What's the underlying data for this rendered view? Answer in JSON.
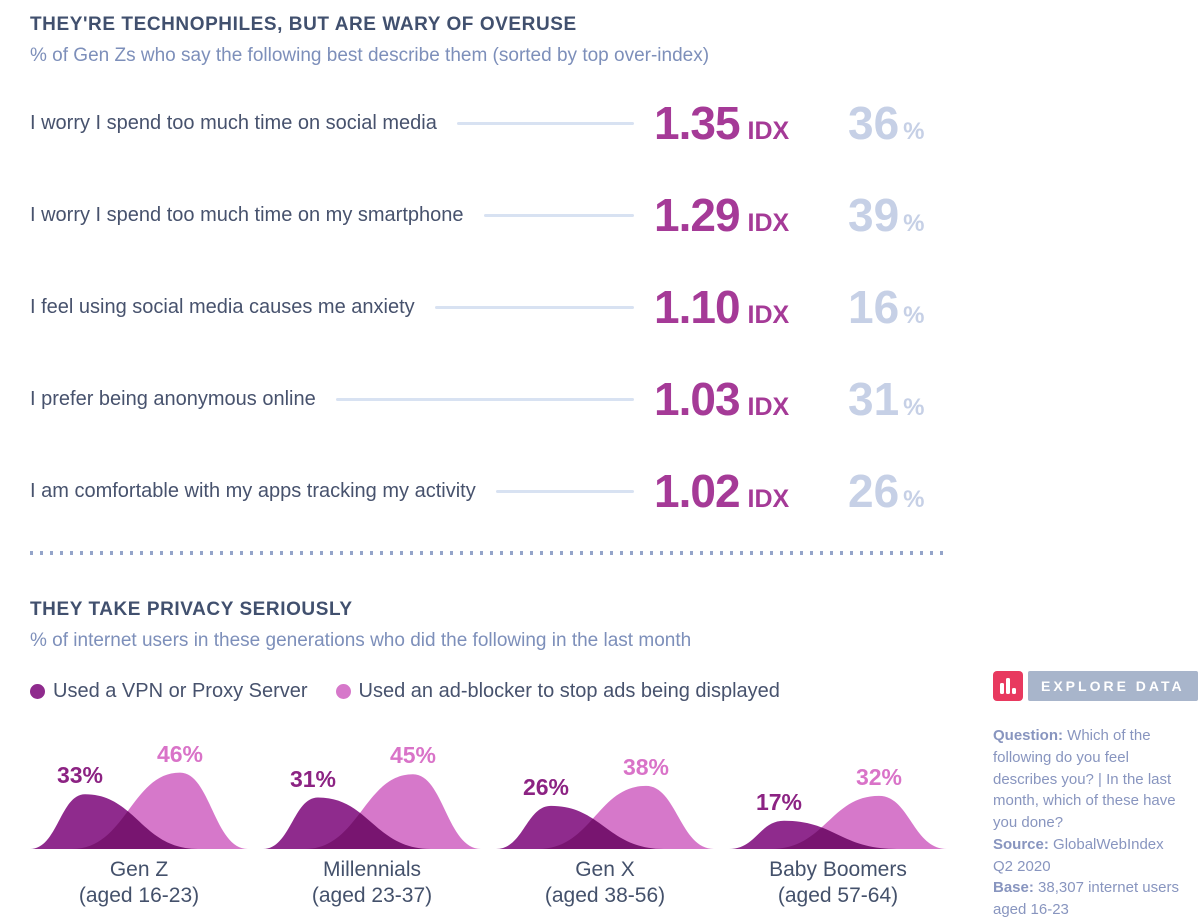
{
  "colors": {
    "heading_navy": "#41506e",
    "body_navy": "#47526d",
    "subtitle_blue": "#7d8fba",
    "index_magenta": "#a53a97",
    "percent_periwinkle": "#c6d0e6",
    "connector_line": "#d8e2f2",
    "divider_dot": "#94a4c9",
    "vpn_purple": "#8f2b8d",
    "adblocker_pink": "#d678ca",
    "vpn_label": "#8c2383",
    "adblocker_label": "#d973c8",
    "explore_icon_red": "#e8395f",
    "explore_button_gray": "#a8b5cb",
    "sidebar_text": "#8895bf"
  },
  "section1": {
    "title": "THEY'RE TECHNOPHILES, BUT ARE WARY OF OVERUSE",
    "subtitle": "% of Gen Zs who say the following best describe them (sorted by top over-index)",
    "idx_suffix": "IDX",
    "pct_suffix": "%",
    "rows": [
      {
        "label": "I worry I spend too much time on social media",
        "idx": "1.35",
        "pct": "36"
      },
      {
        "label": "I worry I spend too much time on my smartphone",
        "idx": "1.29",
        "pct": "39"
      },
      {
        "label": "I feel using social media causes me anxiety",
        "idx": "1.10",
        "pct": "16"
      },
      {
        "label": "I prefer being anonymous online",
        "idx": "1.03",
        "pct": "31"
      },
      {
        "label": "I am comfortable with my apps tracking my activity",
        "idx": "1.02",
        "pct": "26"
      }
    ]
  },
  "section2": {
    "title": "THEY TAKE PRIVACY SERIOUSLY",
    "subtitle": "% of internet users in these generations who did the following in the last month",
    "generations": [
      {
        "name": "Gen Z",
        "aged": "(aged 16-23)"
      },
      {
        "name": "Millennials",
        "aged": "(aged 23-37)"
      },
      {
        "name": "Gen X",
        "aged": "(aged 38-56)"
      },
      {
        "name": "Baby Boomers",
        "aged": "(aged 57-64)"
      }
    ]
  },
  "chart_data": [
    {
      "type": "table",
      "title": "THEY'RE TECHNOPHILES, BUT ARE WARY OF OVERUSE",
      "subtitle": "% of Gen Zs who say the following best describe them (sorted by top over-index)",
      "columns": [
        "statement",
        "over_index (IDX)",
        "percent (%)"
      ],
      "rows": [
        [
          "I worry I spend too much time on social media",
          1.35,
          36
        ],
        [
          "I worry I spend too much time on my smartphone",
          1.29,
          39
        ],
        [
          "I feel using social media causes me anxiety",
          1.1,
          16
        ],
        [
          "I prefer being anonymous online",
          1.03,
          31
        ],
        [
          "I am comfortable with my apps tracking my activity",
          1.02,
          26
        ]
      ]
    },
    {
      "type": "area",
      "title": "THEY TAKE PRIVACY SERIOUSLY",
      "subtitle": "% of internet users in these generations who did the following in the last month",
      "categories": [
        "Gen Z (aged 16-23)",
        "Millennials (aged 23-37)",
        "Gen X (aged 38-56)",
        "Baby Boomers (aged 57-64)"
      ],
      "series": [
        {
          "name": "Used a VPN or Proxy Server",
          "color": "#8f2b8d",
          "values": [
            33,
            31,
            26,
            17
          ]
        },
        {
          "name": "Used an ad-blocker to stop ads being displayed",
          "color": "#d678ca",
          "values": [
            46,
            45,
            38,
            32
          ]
        }
      ],
      "value_suffix": "%",
      "legend_position": "top"
    }
  ],
  "sidebar": {
    "explore_icon": "bar-chart-icon",
    "explore_label": "EXPLORE DATA",
    "notes": [
      {
        "label": "Question:",
        "text": "Which of the following do you feel describes you? | In the last month, which of these have you done?"
      },
      {
        "label": "Source:",
        "text": "GlobalWebIndex Q2 2020"
      },
      {
        "label": "Base:",
        "text": "38,307 internet users aged 16-23"
      }
    ]
  }
}
